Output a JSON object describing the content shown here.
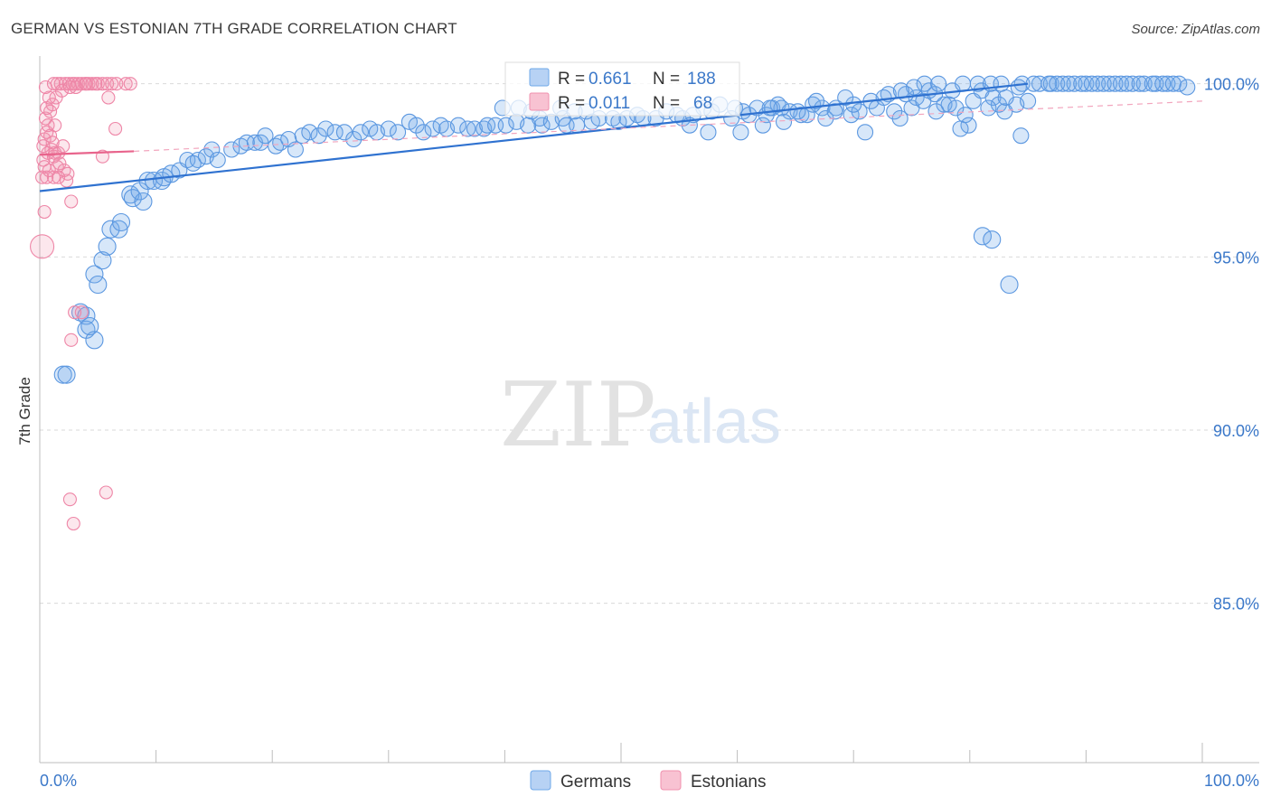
{
  "title": "GERMAN VS ESTONIAN 7TH GRADE CORRELATION CHART",
  "source": "Source: ZipAtlas.com",
  "watermark": {
    "part1": "ZIP",
    "part2": "atlas"
  },
  "colors": {
    "blue": "#6fa8e8",
    "blue_line": "#2f72d0",
    "pink": "#f090ae",
    "pink_line": "#e8648c",
    "tick_text": "#3b78c9"
  },
  "legend_box": {
    "rows": [
      {
        "r_label": "R =",
        "r_value": "0.661",
        "n_label": "N =",
        "n_value": "188"
      },
      {
        "r_label": "R =",
        "r_value": "0.011",
        "n_label": "N =",
        "n_value": "68"
      }
    ]
  },
  "chart_data": {
    "type": "scatter",
    "title": "GERMAN VS ESTONIAN 7TH GRADE CORRELATION CHART",
    "xlabel": "",
    "ylabel": "7th Grade",
    "xlim": [
      0,
      100
    ],
    "ylim": [
      80.4,
      100.8
    ],
    "x_tick_labels": [
      "0.0%",
      "100.0%"
    ],
    "y_ticks": [
      {
        "value": 100,
        "label": "100.0%"
      },
      {
        "value": 95,
        "label": "95.0%"
      },
      {
        "value": 90,
        "label": "90.0%"
      },
      {
        "value": 85,
        "label": "85.0%"
      }
    ],
    "grid": "horizontal dashed",
    "legend_placement": "bottom-center",
    "series": [
      {
        "name": "Germans",
        "r": 0.661,
        "n": 188,
        "trend": {
          "x": [
            0,
            85
          ],
          "y": [
            96.9,
            100.0
          ]
        },
        "points": [
          [
            2,
            91.6
          ],
          [
            2.3,
            91.6
          ],
          [
            4,
            92.9
          ],
          [
            3.5,
            93.4
          ],
          [
            4,
            93.3
          ],
          [
            4.7,
            92.6
          ],
          [
            4.3,
            93
          ],
          [
            4.7,
            94.5
          ],
          [
            5,
            94.2
          ],
          [
            5.4,
            94.9
          ],
          [
            5.8,
            95.3
          ],
          [
            6.1,
            95.8
          ],
          [
            6.8,
            95.8
          ],
          [
            7,
            96
          ],
          [
            7.8,
            96.8
          ],
          [
            8,
            96.7
          ],
          [
            8.9,
            96.6
          ],
          [
            8.6,
            96.9
          ],
          [
            9.3,
            97.2
          ],
          [
            9.8,
            97.2
          ],
          [
            10.5,
            97.2
          ],
          [
            10.7,
            97.3
          ],
          [
            11.3,
            97.4
          ],
          [
            12,
            97.5
          ],
          [
            12.7,
            97.8
          ],
          [
            13.6,
            97.8
          ],
          [
            13.2,
            97.7
          ],
          [
            14.3,
            97.9
          ],
          [
            14.8,
            98.1
          ],
          [
            15.3,
            97.8
          ],
          [
            16.5,
            98.1
          ],
          [
            17.3,
            98.2
          ],
          [
            17.8,
            98.3
          ],
          [
            18.5,
            98.3
          ],
          [
            19,
            98.3
          ],
          [
            19.4,
            98.5
          ],
          [
            20.3,
            98.2
          ],
          [
            20.7,
            98.3
          ],
          [
            21.4,
            98.4
          ],
          [
            22,
            98.1
          ],
          [
            22.6,
            98.5
          ],
          [
            23.2,
            98.6
          ],
          [
            24,
            98.5
          ],
          [
            24.6,
            98.7
          ],
          [
            25.4,
            98.6
          ],
          [
            26.2,
            98.6
          ],
          [
            27,
            98.4
          ],
          [
            27.6,
            98.6
          ],
          [
            28.4,
            98.7
          ],
          [
            29,
            98.6
          ],
          [
            30,
            98.7
          ],
          [
            30.8,
            98.6
          ],
          [
            31.8,
            98.9
          ],
          [
            32.4,
            98.8
          ],
          [
            33,
            98.6
          ],
          [
            33.8,
            98.7
          ],
          [
            34.5,
            98.8
          ],
          [
            35,
            98.7
          ],
          [
            36,
            98.8
          ],
          [
            36.8,
            98.7
          ],
          [
            37.4,
            98.7
          ],
          [
            38.2,
            98.7
          ],
          [
            38.5,
            98.8
          ],
          [
            39.2,
            98.8
          ],
          [
            40.1,
            98.8
          ],
          [
            41,
            98.9
          ],
          [
            42,
            98.8
          ],
          [
            43.2,
            98.8
          ],
          [
            43,
            99
          ],
          [
            44,
            98.9
          ],
          [
            45,
            99
          ],
          [
            45.3,
            98.8
          ],
          [
            46.2,
            98.8
          ],
          [
            47.5,
            98.9
          ],
          [
            48.1,
            99
          ],
          [
            49.3,
            99
          ],
          [
            49.8,
            98.9
          ],
          [
            50.5,
            99
          ],
          [
            51.4,
            99.1
          ],
          [
            51.9,
            99
          ],
          [
            53,
            99
          ],
          [
            53.9,
            99.2
          ],
          [
            54.8,
            99.1
          ],
          [
            55.3,
            99
          ],
          [
            56.2,
            99.1
          ],
          [
            57.1,
            99.3
          ],
          [
            57.8,
            99.2
          ],
          [
            58.5,
            99.4
          ],
          [
            59.5,
            99
          ],
          [
            59.8,
            99.3
          ],
          [
            60.5,
            99.2
          ],
          [
            61,
            99.1
          ],
          [
            61.7,
            99.3
          ],
          [
            62.5,
            99.1
          ],
          [
            63,
            99.3
          ],
          [
            63.5,
            99.4
          ],
          [
            64.5,
            99.2
          ],
          [
            65.5,
            99.1
          ],
          [
            66.5,
            99.4
          ],
          [
            67.3,
            99.3
          ],
          [
            67.6,
            99
          ],
          [
            68.5,
            99.3
          ],
          [
            69.8,
            99.1
          ],
          [
            70.5,
            99.2
          ],
          [
            71,
            98.6
          ],
          [
            72,
            99.3
          ],
          [
            73.5,
            99.2
          ],
          [
            74,
            99
          ],
          [
            75,
            99.3
          ],
          [
            75.4,
            99.6
          ],
          [
            76,
            99.5
          ],
          [
            77,
            99.7
          ],
          [
            77.8,
            99.4
          ],
          [
            78.2,
            99.4
          ],
          [
            79.6,
            99.1
          ],
          [
            80.3,
            99.5
          ],
          [
            81,
            99.8
          ],
          [
            82,
            99.6
          ],
          [
            82.5,
            99.4
          ],
          [
            83,
            99.2
          ],
          [
            84,
            99.4
          ],
          [
            85,
            99.5
          ],
          [
            86,
            100
          ],
          [
            87,
            100
          ],
          [
            88,
            100
          ],
          [
            89,
            100
          ],
          [
            90,
            100
          ],
          [
            91,
            100
          ],
          [
            92,
            100
          ],
          [
            93,
            100
          ],
          [
            94,
            100
          ],
          [
            95,
            100
          ],
          [
            96,
            100
          ],
          [
            97,
            100
          ],
          [
            98,
            100
          ],
          [
            98.7,
            99.9
          ],
          [
            44.8,
            99.3
          ],
          [
            46,
            99.2
          ],
          [
            47,
            99.2
          ],
          [
            39.8,
            99.3
          ],
          [
            41.2,
            99.3
          ],
          [
            42.3,
            99.2
          ],
          [
            55.9,
            98.8
          ],
          [
            57.5,
            98.6
          ],
          [
            60.3,
            98.6
          ],
          [
            62.2,
            98.8
          ],
          [
            64,
            98.9
          ],
          [
            66,
            99.1
          ],
          [
            68.4,
            99.2
          ],
          [
            70,
            99.4
          ],
          [
            71.5,
            99.5
          ],
          [
            73,
            99.7
          ],
          [
            74.5,
            99.7
          ],
          [
            76.5,
            99.8
          ],
          [
            78.5,
            99.8
          ],
          [
            79.4,
            100
          ],
          [
            80.7,
            100
          ],
          [
            81.8,
            100
          ],
          [
            82.7,
            100
          ],
          [
            84.5,
            100
          ],
          [
            85.5,
            100
          ],
          [
            86.8,
            100
          ],
          [
            87.5,
            100
          ],
          [
            88.5,
            100
          ],
          [
            89.6,
            100
          ],
          [
            90.5,
            100
          ],
          [
            91.5,
            100
          ],
          [
            92.5,
            100
          ],
          [
            93.5,
            100
          ],
          [
            94.6,
            100
          ],
          [
            95.7,
            100
          ],
          [
            96.6,
            100
          ],
          [
            97.5,
            100
          ],
          [
            76.1,
            100
          ],
          [
            77.3,
            100
          ],
          [
            75.2,
            99.9
          ],
          [
            74.1,
            99.8
          ],
          [
            72.6,
            99.6
          ],
          [
            69.3,
            99.6
          ],
          [
            79.9,
            98.8
          ],
          [
            79.2,
            98.7
          ],
          [
            81.6,
            99.3
          ],
          [
            84.4,
            98.5
          ],
          [
            83.1,
            99.6
          ],
          [
            77.1,
            99.2
          ],
          [
            78.8,
            99.3
          ],
          [
            81.1,
            95.6
          ],
          [
            81.9,
            95.5
          ],
          [
            83.4,
            94.2
          ],
          [
            84.2,
            99.9
          ],
          [
            63.8,
            99.3
          ],
          [
            66.8,
            99.5
          ],
          [
            65.2,
            99.2
          ],
          [
            62.8,
            99.3
          ]
        ]
      },
      {
        "name": "Estonians",
        "r": 0.011,
        "n": 68,
        "trend": {
          "x": [
            0,
            8.1
          ],
          "y": [
            97.95,
            98.05
          ]
        },
        "points": [
          [
            0.2,
            95.3
          ],
          [
            0.4,
            96.3
          ],
          [
            2.7,
            96.6
          ],
          [
            3,
            93.4
          ],
          [
            3.6,
            93.4
          ],
          [
            2.7,
            92.6
          ],
          [
            2.6,
            88
          ],
          [
            2.9,
            87.3
          ],
          [
            5.7,
            88.2
          ],
          [
            0.6,
            97.3
          ],
          [
            0.8,
            97.5
          ],
          [
            1.2,
            97.3
          ],
          [
            1.5,
            97.6
          ],
          [
            2.1,
            97.5
          ],
          [
            2.4,
            97.4
          ],
          [
            0.3,
            97.8
          ],
          [
            0.7,
            98
          ],
          [
            1,
            98.1
          ],
          [
            1.2,
            97.9
          ],
          [
            1.6,
            98
          ],
          [
            2,
            98.2
          ],
          [
            0.4,
            98.4
          ],
          [
            0.6,
            98.6
          ],
          [
            0.9,
            98.5
          ],
          [
            1.3,
            98.8
          ],
          [
            0.5,
            99
          ],
          [
            0.9,
            99.2
          ],
          [
            1.1,
            99.4
          ],
          [
            1.4,
            99.6
          ],
          [
            0.5,
            99.9
          ],
          [
            1.2,
            100
          ],
          [
            1.5,
            100
          ],
          [
            1.8,
            100
          ],
          [
            2.2,
            100
          ],
          [
            2.5,
            100
          ],
          [
            2.8,
            100
          ],
          [
            3,
            100
          ],
          [
            3.3,
            100
          ],
          [
            3.6,
            100
          ],
          [
            3.9,
            100
          ],
          [
            4.2,
            100
          ],
          [
            4.5,
            100
          ],
          [
            5,
            100
          ],
          [
            5.4,
            100
          ],
          [
            5.8,
            100
          ],
          [
            6.2,
            100
          ],
          [
            7.4,
            100
          ],
          [
            7.8,
            100
          ],
          [
            5.9,
            99.6
          ],
          [
            6.5,
            98.7
          ],
          [
            5.4,
            97.9
          ],
          [
            0.2,
            97.3
          ],
          [
            0.3,
            98.2
          ],
          [
            0.6,
            99.3
          ],
          [
            0.8,
            99.6
          ],
          [
            1.1,
            98.3
          ],
          [
            1.3,
            98
          ],
          [
            1.7,
            97.7
          ],
          [
            2.3,
            97.2
          ],
          [
            3.1,
            99.9
          ],
          [
            4,
            100
          ],
          [
            4.8,
            100
          ],
          [
            6.6,
            100
          ],
          [
            2.6,
            99.9
          ],
          [
            1.9,
            99.8
          ],
          [
            0.4,
            97.6
          ],
          [
            0.7,
            98.8
          ],
          [
            1.6,
            97.3
          ]
        ]
      }
    ]
  }
}
